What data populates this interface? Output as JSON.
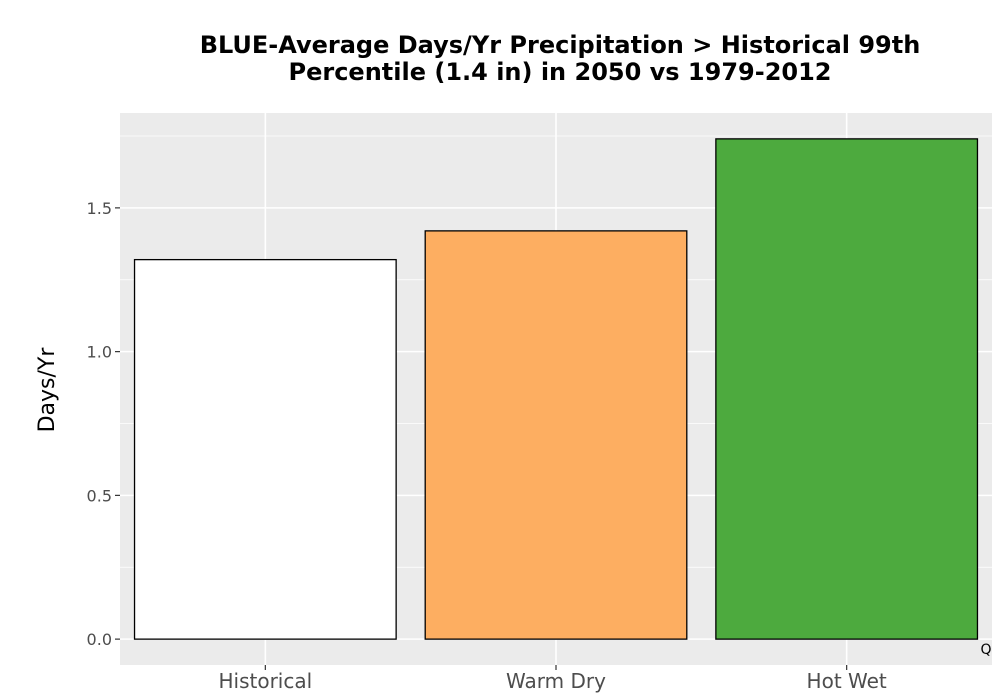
{
  "chart_data": {
    "type": "bar",
    "title_lines": [
      "BLUE-Average Days/Yr Precipitation > Historical 99th",
      "Percentile (1.4 in) in 2050 vs 1979-2012"
    ],
    "xlabel": "",
    "ylabel": "Days/Yr",
    "categories": [
      "Historical",
      "Warm Dry",
      "Hot Wet"
    ],
    "values": [
      1.32,
      1.42,
      1.74
    ],
    "colors": [
      "#ffffff",
      "#fdae61",
      "#4daa3e"
    ],
    "ylim": [
      -0.09,
      1.83
    ],
    "yticks": [
      0.0,
      0.5,
      1.0,
      1.5
    ],
    "ytick_labels": [
      "0.0",
      "0.5",
      "1.0",
      "1.5"
    ],
    "grid": true,
    "panel_background": "#ebebeb",
    "corner_mark": "Q"
  }
}
